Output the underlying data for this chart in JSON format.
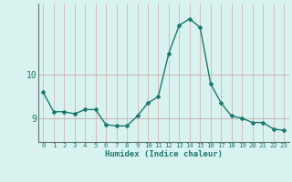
{
  "x": [
    0,
    1,
    2,
    3,
    4,
    5,
    6,
    7,
    8,
    9,
    10,
    11,
    12,
    13,
    14,
    15,
    16,
    17,
    18,
    19,
    20,
    21,
    22,
    23
  ],
  "y": [
    9.6,
    9.15,
    9.15,
    9.1,
    9.2,
    9.2,
    8.85,
    8.82,
    8.82,
    9.05,
    9.35,
    9.5,
    10.5,
    11.15,
    11.3,
    11.1,
    9.8,
    9.35,
    9.05,
    9.0,
    8.9,
    8.9,
    8.75,
    8.72
  ],
  "xlabel": "Humidex (Indice chaleur)",
  "bg_color": "#d8f2f0",
  "line_color": "#1a7a6e",
  "hgrid_color": "#c8aaaa",
  "vgrid_color": "#d4b4b4",
  "yticks": [
    9,
    10
  ],
  "xlim": [
    -0.5,
    23.5
  ],
  "ylim": [
    8.45,
    11.65
  ]
}
